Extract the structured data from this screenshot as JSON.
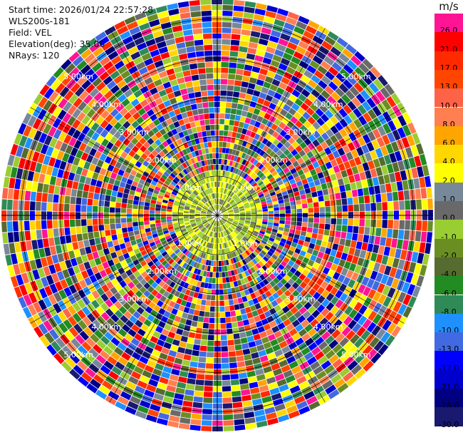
{
  "header": {
    "start_time": "Start time: 2026/01/24 22:57:28",
    "instrument": "WLS200s-181",
    "field": "Field: VEL",
    "elevation": "Elevation(deg): 35.00",
    "nrays": "NRays: 120"
  },
  "colorbar": {
    "unit": "m/s",
    "entries": [
      {
        "label": "26.0",
        "color": "#ff1493"
      },
      {
        "label": "21.0",
        "color": "#ff0000"
      },
      {
        "label": "17.0",
        "color": "#ff2a00"
      },
      {
        "label": "13.0",
        "color": "#ff4500"
      },
      {
        "label": "10.0",
        "color": "#ff6347"
      },
      {
        "label": "8.0",
        "color": "#ff7f50"
      },
      {
        "label": "6.0",
        "color": "#ffa500"
      },
      {
        "label": "4.0",
        "color": "#ffd700"
      },
      {
        "label": "2.0",
        "color": "#ffff00"
      },
      {
        "label": "1.0",
        "color": "#778899"
      },
      {
        "label": "0.0",
        "color": "#696969"
      },
      {
        "label": "-1.0",
        "color": "#9acd32"
      },
      {
        "label": "-2.0",
        "color": "#6b8e23"
      },
      {
        "label": "-4.0",
        "color": "#556b2f"
      },
      {
        "label": "-6.0",
        "color": "#228b22"
      },
      {
        "label": "-8.0",
        "color": "#2e8b57"
      },
      {
        "label": "-10.0",
        "color": "#1e90ff"
      },
      {
        "label": "-13.0",
        "color": "#4169e1"
      },
      {
        "label": "-17.0",
        "color": "#0000ff"
      },
      {
        "label": "-21.0",
        "color": "#0000cd"
      },
      {
        "label": "-26.0",
        "color": "#000080"
      },
      {
        "label": "-30.0",
        "color": "#191970"
      }
    ]
  },
  "chart_data": {
    "type": "heatmap",
    "projection": "polar PPI",
    "field": "VEL",
    "unit": "m/s",
    "elevation_deg": 35.0,
    "n_rays": 120,
    "range_rings_km": [
      1.0,
      2.0,
      3.0,
      4.0,
      5.0
    ],
    "ring_labels": [
      "1.0km",
      "2.00km",
      "3.00km",
      "4.00km",
      "5.00km"
    ],
    "max_range_km": 5.5,
    "inner_region": {
      "outer_radius_km": 1.15,
      "dominant_values": [
        "0.0",
        "2.0",
        "-1.0",
        "-2.0"
      ]
    },
    "outer_region": "noise, all colorbar classes",
    "grid": true
  }
}
